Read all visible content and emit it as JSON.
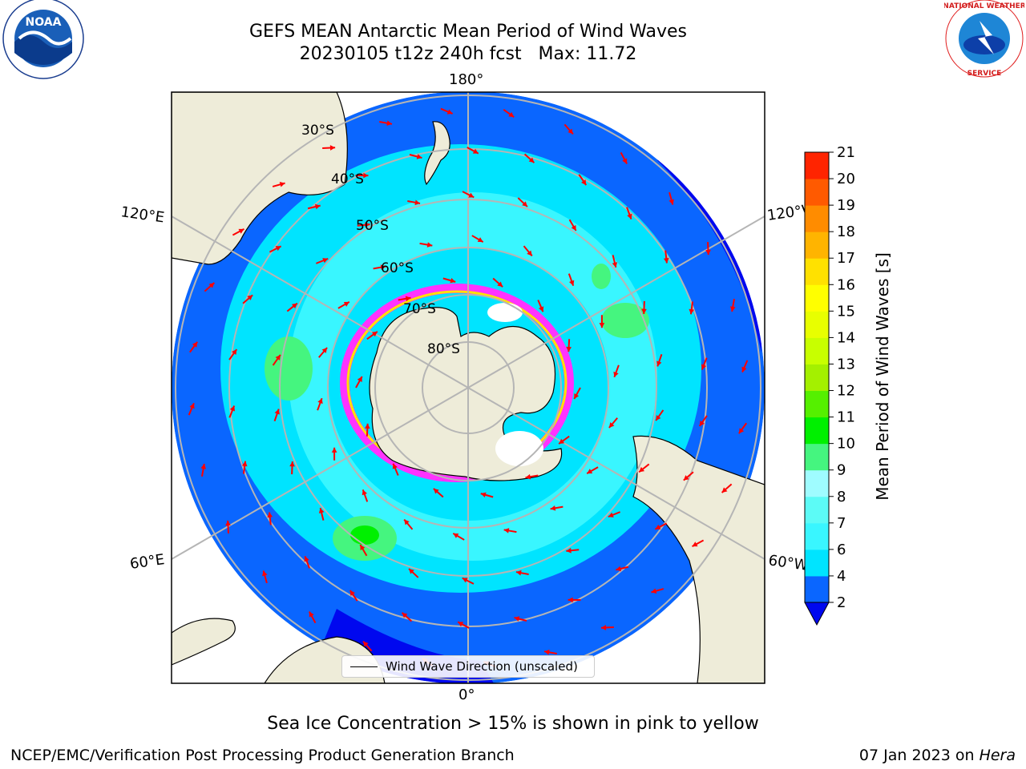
{
  "title": {
    "line1": "GEFS MEAN Antarctic Mean Period of Wind Waves",
    "line2": "20230105 t12z 240h fcst   Max: 11.72"
  },
  "map": {
    "projection": "south-polar-stereographic",
    "longitude_labels": {
      "top": "180°",
      "bottom": "0°",
      "left_upper": "120°E",
      "left_lower": "60°E",
      "right_upper": "120°W",
      "right_lower": "60°W"
    },
    "latitude_labels": [
      "30°S",
      "40°S",
      "50°S",
      "60°S",
      "70°S",
      "80°S"
    ],
    "legend": "Wind Wave Direction (unscaled)",
    "colors": {
      "land": "#eeecd9",
      "ocean_deep": "#0a66ff",
      "ocean_mid": "#00e4ff",
      "ocean_light": "#5cfbf6",
      "low_band": "#0008ef",
      "arrow": "#ff0000",
      "sea_ice": "#ff33ff",
      "grid": "#b5b5b5"
    }
  },
  "colorbar": {
    "label": "Mean Period of Wind Waves [s]",
    "ticks": [
      "2",
      "4",
      "6",
      "7",
      "8",
      "9",
      "10",
      "11",
      "12",
      "13",
      "14",
      "15",
      "16",
      "17",
      "18",
      "19",
      "20",
      "21"
    ],
    "colors": [
      "#0a66ff",
      "#00e4ff",
      "#39f6ff",
      "#5cfbf6",
      "#9ffcff",
      "#45f57f",
      "#00f000",
      "#55f000",
      "#a4f000",
      "#c8ff00",
      "#e8ff00",
      "#ffff00",
      "#ffe100",
      "#ffb400",
      "#ff8c00",
      "#ff5a00",
      "#ff2400",
      "#ff0000"
    ],
    "extend_color": "#0008ef"
  },
  "sea_ice_note": "Sea Ice Concentration > 15% is shown in pink to yellow",
  "footer": {
    "left": "NCEP/EMC/Verification Post Processing Product Generation Branch",
    "right_prefix": "07 Jan 2023 on ",
    "right_host": "Hera"
  },
  "logos": {
    "left": "noara-logo",
    "right": "nws-logo"
  }
}
